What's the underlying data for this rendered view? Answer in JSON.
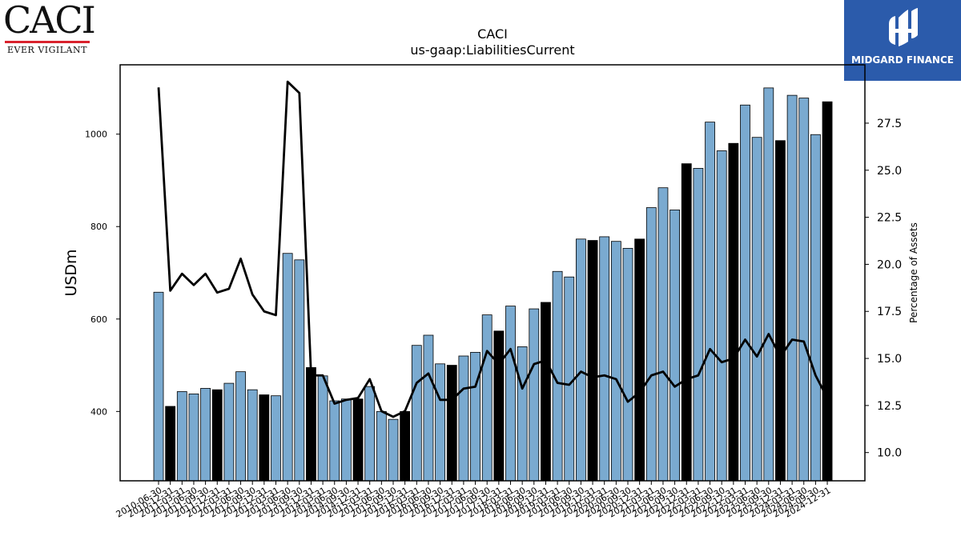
{
  "header": {
    "company_logo_text": "CACI",
    "company_logo_tagline": "EVER VIGILANT",
    "sponsor_logo_text": "MIDGARD FINANCE"
  },
  "colors": {
    "bar_default": "#7aaad0",
    "bar_highlight": "#000000",
    "line": "#000000",
    "caci_red": "#d9232d",
    "midgard_blue": "#2b5bab"
  },
  "chart_data": {
    "type": "bar",
    "title": "CACI",
    "subtitle": "us-gaap:LiabilitiesCurrent",
    "ylabel": "USDm",
    "y2label": "Percentage of Assets",
    "ylim": [
      250,
      1150
    ],
    "y2lim": [
      8.5,
      30.6
    ],
    "yticks": [
      400,
      600,
      800,
      1000
    ],
    "y2ticks": [
      10.0,
      12.5,
      15.0,
      17.5,
      20.0,
      22.5,
      25.0,
      27.5
    ],
    "grid": false,
    "categories": [
      "2010-06-30",
      "2010-12-31",
      "2011-03-31",
      "2011-06-30",
      "2011-09-30",
      "2011-12-31",
      "2012-03-31",
      "2012-06-30",
      "2012-09-30",
      "2012-12-31",
      "2013-03-31",
      "2013-06-30",
      "2013-09-30",
      "2013-12-31",
      "2014-03-31",
      "2014-06-30",
      "2014-09-30",
      "2014-12-31",
      "2015-03-31",
      "2015-06-30",
      "2015-09-30",
      "2015-12-31",
      "2016-03-31",
      "2016-06-30",
      "2016-09-30",
      "2016-12-31",
      "2017-03-31",
      "2017-06-30",
      "2017-09-30",
      "2017-12-31",
      "2018-03-31",
      "2018-06-30",
      "2018-09-30",
      "2018-12-31",
      "2019-03-31",
      "2019-06-30",
      "2019-09-30",
      "2019-12-31",
      "2020-03-31",
      "2020-06-30",
      "2020-09-30",
      "2020-12-31",
      "2021-03-31",
      "2021-06-30",
      "2021-09-30",
      "2021-12-31",
      "2022-03-31",
      "2022-06-30",
      "2022-09-30",
      "2022-12-31",
      "2023-03-31",
      "2023-06-30",
      "2023-09-30",
      "2023-12-31",
      "2024-03-31",
      "2024-06-30",
      "2024-09-30",
      "2024-12-31"
    ],
    "highlight": [
      false,
      true,
      false,
      false,
      false,
      true,
      false,
      false,
      false,
      true,
      false,
      false,
      false,
      true,
      false,
      false,
      false,
      true,
      false,
      false,
      false,
      true,
      false,
      false,
      false,
      true,
      false,
      false,
      false,
      true,
      false,
      false,
      false,
      true,
      false,
      false,
      false,
      true,
      false,
      false,
      false,
      true,
      false,
      false,
      false,
      true,
      false,
      false,
      false,
      true,
      false,
      false,
      false,
      true,
      false,
      false,
      false,
      true
    ],
    "series": [
      {
        "name": "LiabilitiesCurrent",
        "type": "bar",
        "axis": "left",
        "values": [
          658,
          411,
          443,
          438,
          450,
          447,
          461,
          486,
          447,
          436,
          434,
          742,
          728,
          495,
          477,
          423,
          427,
          427,
          454,
          400,
          383,
          400,
          543,
          565,
          503,
          500,
          520,
          528,
          609,
          574,
          628,
          540,
          622,
          636,
          703,
          691,
          773,
          770,
          778,
          768,
          753,
          773,
          841,
          884,
          836,
          936,
          926,
          1026,
          964,
          980,
          1063,
          993,
          1100,
          986,
          1084,
          1078,
          999,
          1070
        ]
      },
      {
        "name": "Percentage of Assets",
        "type": "line",
        "axis": "right",
        "values": [
          29.4,
          18.6,
          19.5,
          18.9,
          19.5,
          18.5,
          18.7,
          20.3,
          18.4,
          17.5,
          17.3,
          29.7,
          29.1,
          14.1,
          14.1,
          12.6,
          12.8,
          12.9,
          13.9,
          12.2,
          11.9,
          12.2,
          13.7,
          14.2,
          12.8,
          12.8,
          13.4,
          13.5,
          15.4,
          14.7,
          15.5,
          13.4,
          14.7,
          14.9,
          13.7,
          13.6,
          14.3,
          14.0,
          14.1,
          13.9,
          12.7,
          13.2,
          14.1,
          14.3,
          13.5,
          13.9,
          14.1,
          15.5,
          14.8,
          15.0,
          16.0,
          15.1,
          16.3,
          15.1,
          16.0,
          15.9,
          14.1,
          12.9
        ]
      }
    ]
  }
}
